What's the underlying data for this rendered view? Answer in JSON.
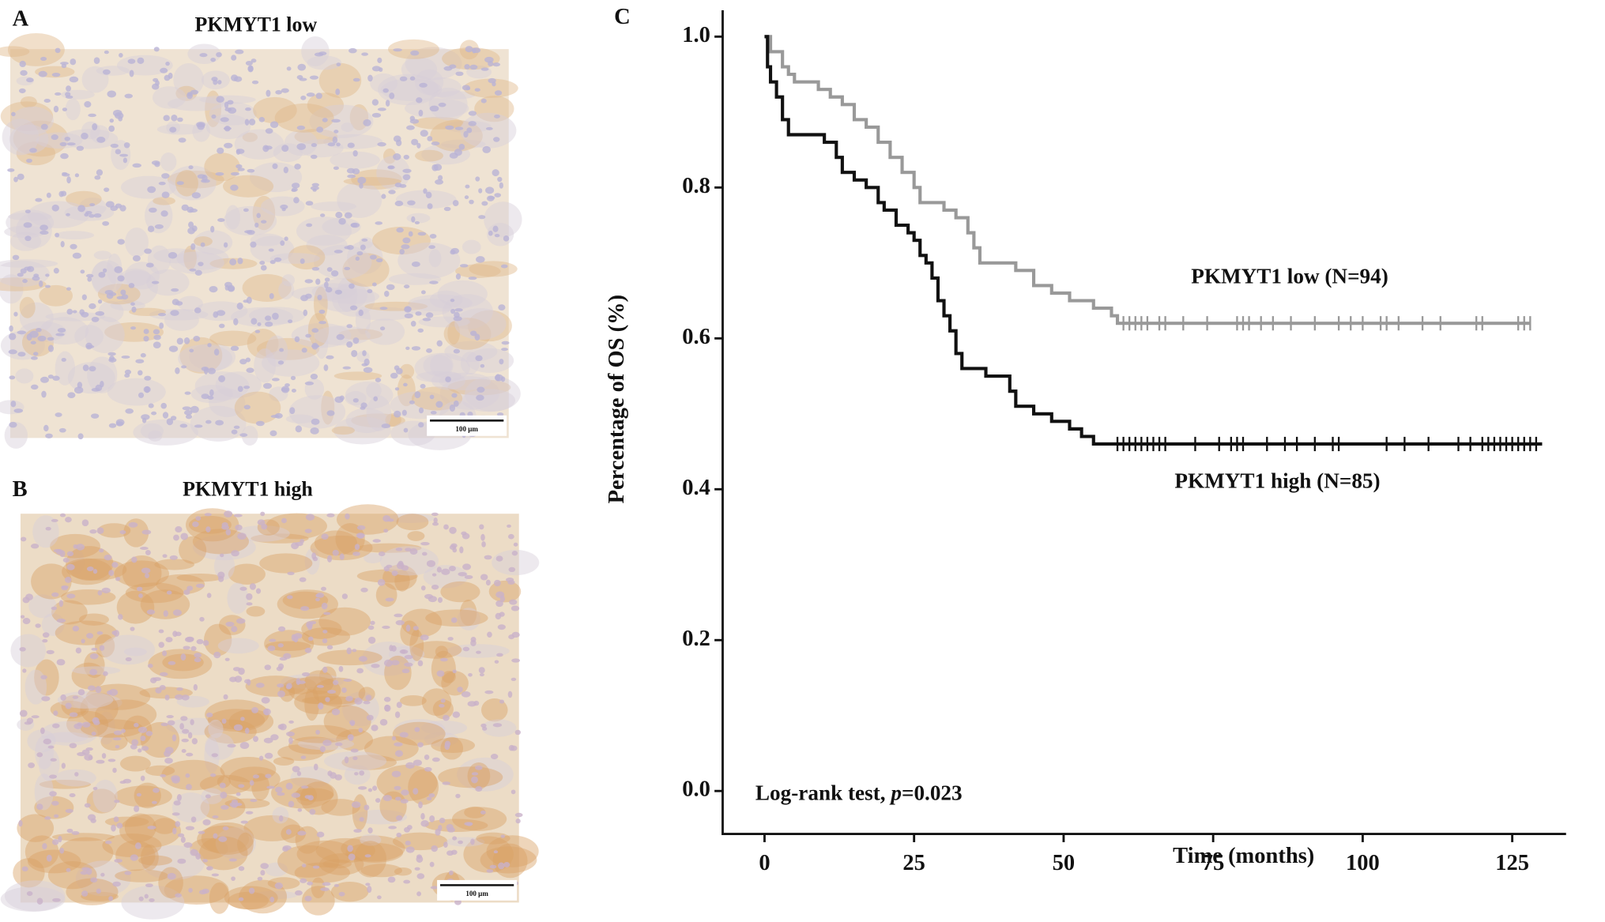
{
  "panels": [
    {
      "label": "A",
      "title": "PKMYT1 low",
      "scale_bar": "100 μm"
    },
    {
      "label": "B",
      "title": "PKMYT1 high",
      "scale_bar": "100 μm"
    }
  ],
  "chart_data": {
    "type": "km",
    "panel_label": "C",
    "x_label": "Time (months)",
    "y_label": "Percentage of OS (%)",
    "xlim": [
      -7,
      134
    ],
    "ylim": [
      -0.057,
      1.035
    ],
    "xticks": [
      0,
      25,
      50,
      75,
      100,
      125
    ],
    "yticks": [
      {
        "value": 0,
        "label": "0.0"
      },
      0.2,
      0.4,
      0.6,
      0.8,
      {
        "value": 1,
        "label": "1.0"
      }
    ],
    "series": [
      {
        "name": "PKMYT1 low (N=94)",
        "color": "#999999",
        "x": [
          0,
          1,
          3,
          4,
          5,
          9,
          11,
          13,
          15,
          17,
          19,
          21,
          23,
          25,
          26,
          30,
          32,
          34,
          35,
          36,
          42,
          45,
          48,
          51,
          55,
          58,
          59,
          128
        ],
        "values": [
          1.0,
          0.98,
          0.96,
          0.95,
          0.94,
          0.93,
          0.92,
          0.91,
          0.89,
          0.88,
          0.86,
          0.84,
          0.82,
          0.8,
          0.78,
          0.77,
          0.76,
          0.74,
          0.72,
          0.7,
          0.69,
          0.67,
          0.66,
          0.65,
          0.64,
          0.63,
          0.62,
          0.62
        ],
        "censored": [
          60,
          61,
          62,
          63,
          64,
          66,
          67,
          70,
          74,
          79,
          80,
          81,
          83,
          85,
          88,
          92,
          96,
          98,
          100,
          103,
          104,
          106,
          110,
          113,
          119,
          120,
          126,
          127,
          128
        ]
      },
      {
        "name": "PKMYT1 high (N=85)",
        "color": "#111111",
        "x": [
          0,
          0.5,
          1,
          2,
          3,
          4,
          10,
          12,
          13,
          15,
          17,
          19,
          20,
          22,
          24,
          25,
          26,
          27,
          28,
          29,
          30,
          31,
          32,
          33,
          37,
          41,
          42,
          45,
          48,
          51,
          53,
          55,
          130
        ],
        "values": [
          1.0,
          0.96,
          0.94,
          0.92,
          0.89,
          0.87,
          0.86,
          0.84,
          0.82,
          0.81,
          0.8,
          0.78,
          0.77,
          0.75,
          0.74,
          0.73,
          0.71,
          0.7,
          0.68,
          0.65,
          0.63,
          0.61,
          0.58,
          0.56,
          0.55,
          0.53,
          0.51,
          0.5,
          0.49,
          0.48,
          0.47,
          0.46,
          0.46
        ],
        "censored": [
          59,
          60,
          61,
          62,
          63,
          64,
          65,
          66,
          67,
          72,
          76,
          78,
          79,
          80,
          84,
          87,
          89,
          92,
          95,
          96,
          104,
          107,
          111,
          116,
          118,
          120,
          121,
          122,
          123,
          124,
          125,
          126,
          127,
          128,
          129
        ]
      }
    ],
    "annotation": [
      "Log-rank test, ",
      "p",
      "=0.023"
    ]
  }
}
